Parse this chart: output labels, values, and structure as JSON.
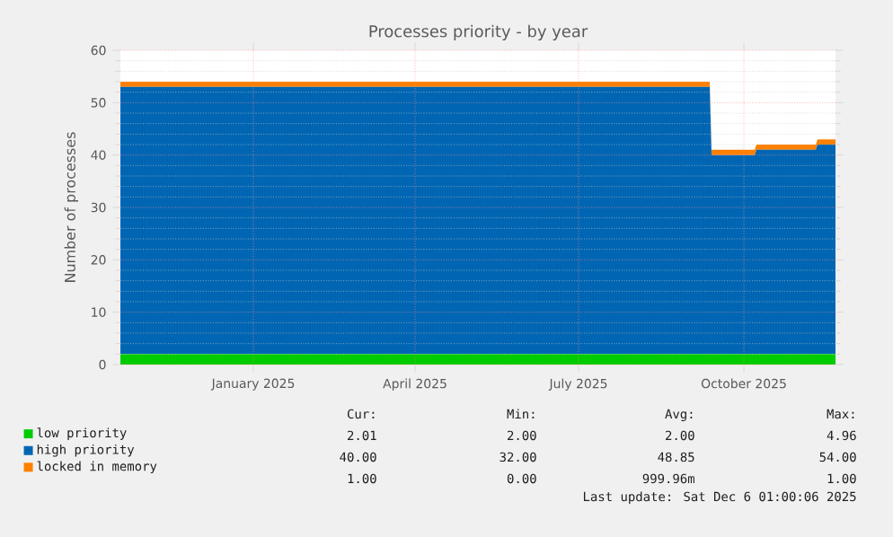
{
  "chart_data": {
    "type": "area",
    "stacked": true,
    "title": "Processes priority - by year",
    "ylabel": "Number of processes",
    "x": [
      "2024-11-03",
      "2025-09-27",
      "2025-09-28",
      "2025-10-22",
      "2025-10-23",
      "2025-11-25",
      "2025-11-26",
      "2025-12-06"
    ],
    "series": [
      {
        "name": "low priority",
        "color": "#00cc00",
        "values": [
          2,
          2,
          2,
          2,
          2,
          2,
          2,
          2
        ]
      },
      {
        "name": "high priority",
        "color": "#0066b3",
        "values": [
          51,
          51,
          38,
          38,
          39,
          39,
          40,
          40
        ]
      },
      {
        "name": "locked in memory",
        "color": "#ff8000",
        "values": [
          1,
          1,
          1,
          1,
          1,
          1,
          1,
          1
        ]
      }
    ],
    "xlim": [
      "2024-11-03",
      "2025-12-06"
    ],
    "xticks": [
      {
        "value": "2025-01-16",
        "label": "January 2025"
      },
      {
        "value": "2025-04-16",
        "label": "April 2025"
      },
      {
        "value": "2025-07-16",
        "label": "July 2025"
      },
      {
        "value": "2025-10-16",
        "label": "October 2025"
      }
    ],
    "ylim": [
      0,
      60
    ],
    "yticks": [
      0,
      10,
      20,
      30,
      40,
      50,
      60
    ],
    "grid": true,
    "legend": "bottom",
    "annotations": [
      "Cur:",
      "Min:",
      "Avg:",
      "Max:",
      "2.01",
      "2.00",
      "2.00",
      "4.96",
      "40.00",
      "32.00",
      "48.85",
      "54.00",
      "1.00",
      "0.00",
      "999.96m",
      "1.00",
      "Last update: Sat Dec  6 01:00:06 2025"
    ]
  }
}
